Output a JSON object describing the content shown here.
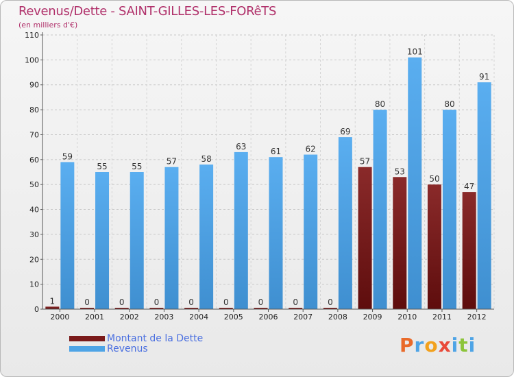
{
  "title": "Revenus/Dette - SAINT-GILLES-LES-FORêTS",
  "subtitle": "(en milliers d'€)",
  "colors": {
    "debt": "#7a1a1a",
    "revenue": "#4ea4e6",
    "title": "#b0306a",
    "legend_text": "#4a6fe0"
  },
  "legend": {
    "debt_label": "Montant de la Dette",
    "revenue_label": "Revenus"
  },
  "logo": {
    "text": "Proxiti",
    "letters": [
      {
        "ch": "P",
        "color": "#e96a2a"
      },
      {
        "ch": "r",
        "color": "#4ea4e6"
      },
      {
        "ch": "o",
        "color": "#f2a11d"
      },
      {
        "ch": "x",
        "color": "#e94a3a"
      },
      {
        "ch": "i",
        "color": "#4ea4e6"
      },
      {
        "ch": "t",
        "color": "#8cc43a"
      },
      {
        "ch": "i",
        "color": "#4ea4e6"
      }
    ]
  },
  "chart_data": {
    "type": "bar",
    "title": "Revenus/Dette - SAINT-GILLES-LES-FORêTS",
    "ylabel": "(en milliers d'€)",
    "xlabel": "",
    "categories": [
      "2000",
      "2001",
      "2002",
      "2003",
      "2004",
      "2005",
      "2006",
      "2007",
      "2008",
      "2009",
      "2010",
      "2011",
      "2012"
    ],
    "series": [
      {
        "name": "Montant de la Dette",
        "values": [
          1,
          0,
          0,
          0,
          0,
          0,
          0,
          0,
          0,
          57,
          53,
          50,
          47
        ]
      },
      {
        "name": "Revenus",
        "values": [
          59,
          55,
          55,
          57,
          58,
          63,
          61,
          62,
          69,
          80,
          101,
          80,
          91
        ]
      }
    ],
    "ylim": [
      0,
      110
    ],
    "yticks": [
      0,
      10,
      20,
      30,
      40,
      50,
      60,
      70,
      80,
      90,
      100,
      110
    ],
    "grid": true,
    "legend_position": "bottom-left"
  }
}
